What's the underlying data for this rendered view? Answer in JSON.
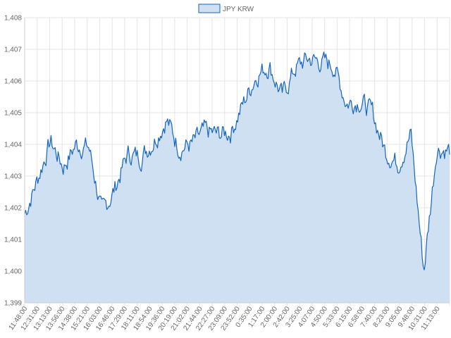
{
  "chart_data": {
    "type": "area",
    "title": "",
    "xlabel": "",
    "ylabel": "",
    "legend": {
      "position": "top-center",
      "entries": [
        "JPY KRW"
      ]
    },
    "series": [
      {
        "name": "JPY KRW",
        "color": "#1565c0",
        "fill": "#cfe0f3",
        "x": [
          "11:48:00",
          "12:31:00",
          "13:13:00",
          "13:56:00",
          "14:38:00",
          "15:21:00",
          "16:03:00",
          "16:46:00",
          "17:29:00",
          "18:11:00",
          "18:54:00",
          "19:36:00",
          "20:19:00",
          "21:02:00",
          "21:44:00",
          "22:27:00",
          "23:09:00",
          "23:52:00",
          "0:35:00",
          "1:17:00",
          "2:00:00",
          "2:42:00",
          "3:25:00",
          "4:07:00",
          "4:50:00",
          "5:33:00",
          "6:15:00",
          "6:58:00",
          "7:40:00",
          "8:23:00",
          "9:05:00",
          "9:48:00",
          "10:31:00",
          "11:13:00"
        ],
        "values": [
          1401.8,
          1402.9,
          1404.1,
          1403.3,
          1404.0,
          1403.9,
          1401.8,
          1402.6,
          1403.7,
          1403.6,
          1404.1,
          1404.8,
          1403.9,
          1404.0,
          1404.4,
          1404.3,
          1404.4,
          1405.3,
          1406.2,
          1406.5,
          1405.5,
          1406.4,
          1406.7,
          1406.6,
          1406.5,
          1405.3,
          1405.4,
          1405.0,
          1403.8,
          1403.4,
          1404.3,
          1400.0,
          1403.9,
          1403.8
        ],
        "range": {
          "min": 1399.8,
          "max": 1407.2
        }
      }
    ],
    "y_ticks": [
      "1,399",
      "1,400",
      "1,401",
      "1,402",
      "1,403",
      "1,404",
      "1,405",
      "1,406",
      "1,407",
      "1,408"
    ],
    "x_ticks": [
      "11:48:00",
      "12:31:00",
      "13:13:00",
      "13:56:00",
      "14:38:00",
      "15:21:00",
      "16:03:00",
      "16:46:00",
      "17:29:00",
      "18:11:00",
      "18:54:00",
      "19:36:00",
      "20:19:00",
      "21:02:00",
      "21:44:00",
      "22:27:00",
      "23:09:00",
      "23:52:00",
      "0:35:00",
      "1:17:00",
      "2:00:00",
      "2:42:00",
      "3:25:00",
      "4:07:00",
      "4:50:00",
      "5:33:00",
      "6:15:00",
      "6:58:00",
      "7:40:00",
      "8:23:00",
      "9:05:00",
      "9:48:00",
      "10:31:00",
      "11:13:00"
    ],
    "ylim": [
      1399,
      1408
    ],
    "grid": true
  }
}
